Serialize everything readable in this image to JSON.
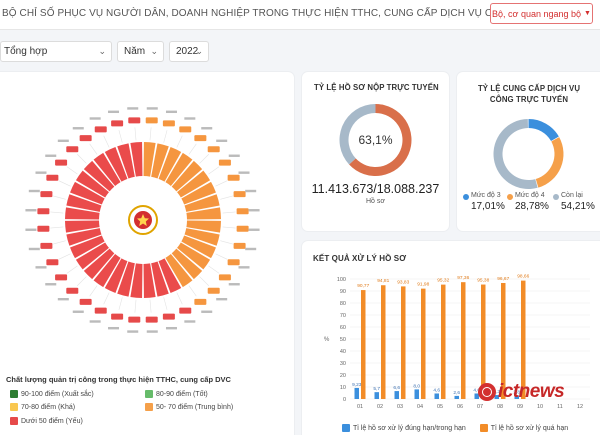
{
  "header": {
    "title": "BỘ CHỈ SỐ PHỤC VỤ NGƯỜI DÂN, DOANH NGHIỆP TRONG THỰC HIỆN TTHC, CUNG CẤP DỊCH VỤ CÔNG",
    "agency_select": "Bộ, cơ quan ngang bộ"
  },
  "filters": {
    "scope": "Tổng hợp",
    "period": "Năm",
    "year": "2022"
  },
  "governance": {
    "legend_title": "Chất lượng quản trị công trong thực hiện TTHC, cung cấp DVC",
    "legend": [
      {
        "label": "90-100 điểm (Xuất sắc)",
        "color": "#2e7d32"
      },
      {
        "label": "80-90 điểm (Tốt)",
        "color": "#66bb6a"
      },
      {
        "label": "70-80 điểm (Khá)",
        "color": "#f9c74f"
      },
      {
        "label": "50- 70 điểm (Trung bình)",
        "color": "#f5a04a"
      },
      {
        "label": "Dưới 50 điểm (Yếu)",
        "color": "#e64a4a"
      }
    ]
  },
  "online_submission": {
    "title": "TỶ LỆ HỒ SƠ NỘP TRỰC TUYẾN",
    "percent": "63,1%",
    "share": 0.631,
    "ratio": "11.413.673/18.088.237",
    "unit": "Hồ sơ",
    "colors": {
      "main": "#d96f4a",
      "rest": "#a7b9c9"
    }
  },
  "online_service": {
    "title": "TỶ LỆ CUNG CẤP DỊCH VỤ CÔNG TRỰC TUYẾN",
    "segments": [
      {
        "label": "Mức độ 3",
        "value": "17,01%",
        "share": 0.1701,
        "color": "#3b8fdd"
      },
      {
        "label": "Mức độ 4",
        "value": "28,78%",
        "share": 0.2878,
        "color": "#f5a04a"
      },
      {
        "label": "Còn lại",
        "value": "54,21%",
        "share": 0.5421,
        "color": "#a7b9c9"
      }
    ]
  },
  "processing": {
    "title": "KẾT QUẢ XỬ LÝ HỒ SƠ",
    "ylabel": "%",
    "legend": [
      {
        "label": "Tỉ lệ hồ sơ xử lý đúng hạn/trong hạn",
        "color": "#3b8fdd"
      },
      {
        "label": "Tỉ lệ hồ sơ xử lý quá hạn",
        "color": "#f28c28"
      }
    ]
  },
  "chart_data": {
    "type": "bar",
    "categories": [
      "01",
      "02",
      "03",
      "04",
      "05",
      "06",
      "07",
      "08",
      "09",
      "10",
      "11",
      "12"
    ],
    "series": [
      {
        "name": "Tỉ lệ hồ sơ xử lý đúng hạn/trong hạn",
        "values": [
          9.23,
          5.7,
          6.6,
          8.0,
          4.6,
          2.6,
          4.6,
          3.3,
          2.8,
          null,
          null,
          null
        ]
      },
      {
        "name": "Tỉ lệ hồ sơ xử lý quá hạn",
        "values": [
          90.77,
          94.81,
          93.83,
          91.98,
          95.32,
          97.36,
          95.38,
          96.67,
          98.66,
          null,
          null,
          null
        ]
      }
    ],
    "data_labels_orange": [
      "90,77",
      "94,81",
      "93,83",
      "91,98",
      "95,32",
      "97,36",
      "95,38",
      "96,67",
      "98,66"
    ],
    "data_labels_blue": [
      "9,23",
      "5,7",
      "6,6",
      "8,0",
      "4,6",
      "2,6",
      "4,6",
      "3,3",
      "2,8"
    ],
    "ylim": [
      0,
      100
    ],
    "yticks": [
      0,
      10,
      20,
      30,
      40,
      50,
      60,
      70,
      80,
      90,
      100
    ],
    "ylabel": "%",
    "grid": true,
    "legend_position": "bottom"
  },
  "watermark": "ictnews"
}
